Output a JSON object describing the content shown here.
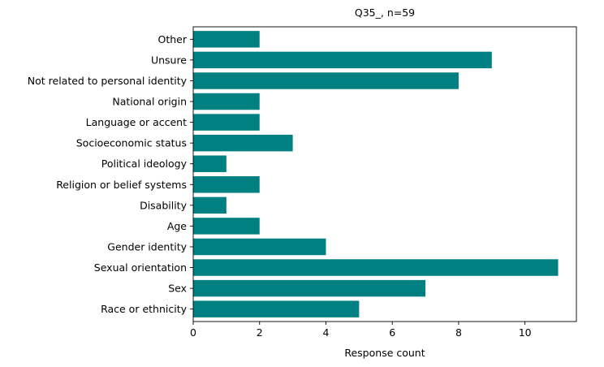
{
  "chart_data": {
    "type": "bar",
    "orientation": "horizontal",
    "title": "Q35_, n=59",
    "xlabel": "Response count",
    "ylabel": "",
    "categories": [
      "Race or ethnicity",
      "Sex",
      "Sexual orientation",
      "Gender identity",
      "Age",
      "Disability",
      "Religion or belief systems",
      "Political ideology",
      "Socioeconomic status",
      "Language or accent",
      "National origin",
      "Not related to personal identity",
      "Unsure",
      "Other"
    ],
    "values": [
      5,
      7,
      11,
      4,
      2,
      1,
      2,
      1,
      3,
      2,
      2,
      8,
      9,
      2
    ],
    "xlim": [
      0,
      11.55
    ],
    "xticks": [
      0,
      2,
      4,
      6,
      8,
      10
    ],
    "bar_color": "#008080",
    "grid": false,
    "legend": "none"
  }
}
